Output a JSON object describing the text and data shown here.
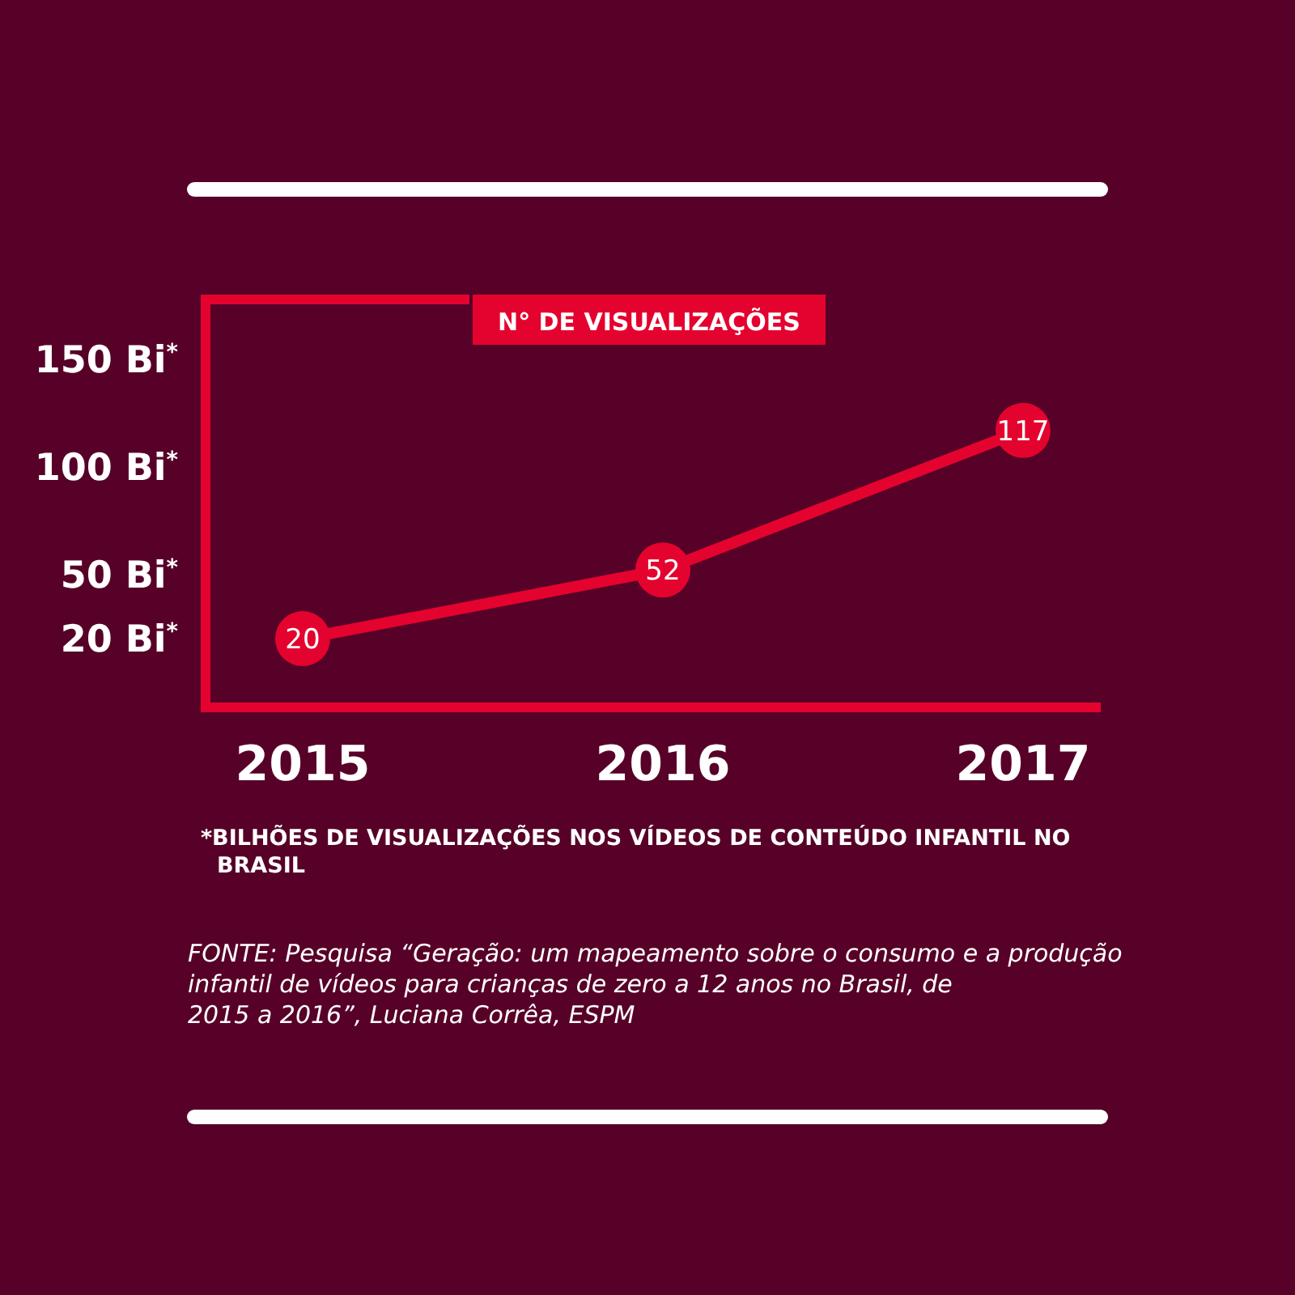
{
  "chart_data": {
    "type": "line",
    "title": "N° DE VISUALIZAÇÕES",
    "categories": [
      "2015",
      "2016",
      "2017"
    ],
    "values": [
      20,
      52,
      117
    ],
    "color": "#e4032e",
    "ylim": [
      -12,
      178
    ],
    "yticks": [
      {
        "value": 20,
        "label": "20 Bi$^{*}$"
      },
      {
        "value": 50,
        "label": "50 Bi$^{*}$"
      },
      {
        "value": 100,
        "label": "100 Bi$^{*}$"
      },
      {
        "value": 150,
        "label": "150 Bi$^{*}$"
      }
    ],
    "data_labels": true,
    "marker": "circle",
    "grid": false,
    "annotations": [
      "*BILHÕES DE VISUALIZAÇÕES NOS VÍDEOS DE CONTEÚDO INFANTIL NO BRASIL",
      "FONTE: Pesquisa “Geração: um mapeamento sobre o consumo e a produção infantil de vídeos para crianças de zero a 12 anos no Brasil, de 2015 a 2016”, Luciana Corrêa, ESPM"
    ]
  }
}
